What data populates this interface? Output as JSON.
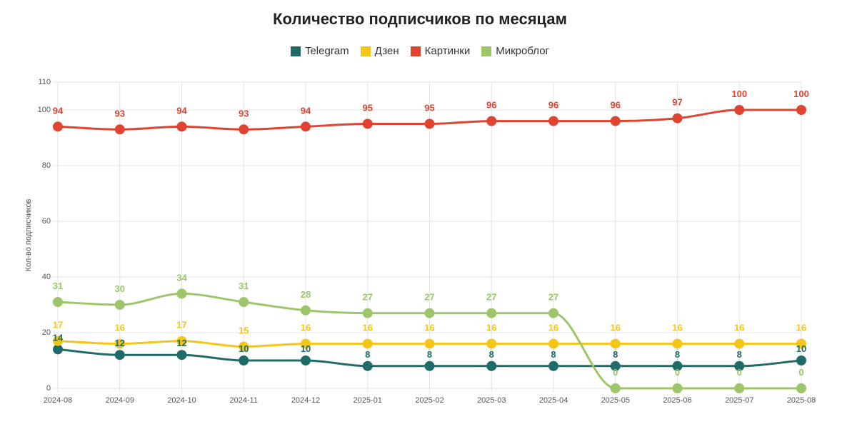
{
  "chart_data": {
    "type": "line",
    "title": "Количество подписчиков по месяцам",
    "xlabel": "",
    "ylabel": "Кол-во подписчиков",
    "ylim": [
      0,
      110
    ],
    "yticks": [
      "0",
      "20",
      "40",
      "60",
      "80",
      "100",
      "110"
    ],
    "categories": [
      "2024-08",
      "2024-09",
      "2024-10",
      "2024-11",
      "2024-12",
      "2025-01",
      "2025-02",
      "2025-03",
      "2025-04",
      "2025-05",
      "2025-06",
      "2025-07",
      "2025-08"
    ],
    "series": [
      {
        "name": "Telegram",
        "color": "#1f6b67",
        "values": [
          14,
          12,
          12,
          10,
          10,
          8,
          8,
          8,
          8,
          8,
          8,
          8,
          10
        ]
      },
      {
        "name": "Дзен",
        "color": "#f5c518",
        "values": [
          17,
          16,
          17,
          15,
          16,
          16,
          16,
          16,
          16,
          16,
          16,
          16,
          16
        ]
      },
      {
        "name": "Картинки",
        "color": "#e04330",
        "values": [
          94,
          93,
          94,
          93,
          94,
          95,
          95,
          96,
          96,
          96,
          97,
          100,
          100
        ]
      },
      {
        "name": "Микроблог",
        "color": "#9dc56a",
        "values": [
          31,
          30,
          34,
          31,
          28,
          27,
          27,
          27,
          27,
          0,
          0,
          0,
          0
        ]
      }
    ],
    "grid": true,
    "legend": "top-center"
  }
}
